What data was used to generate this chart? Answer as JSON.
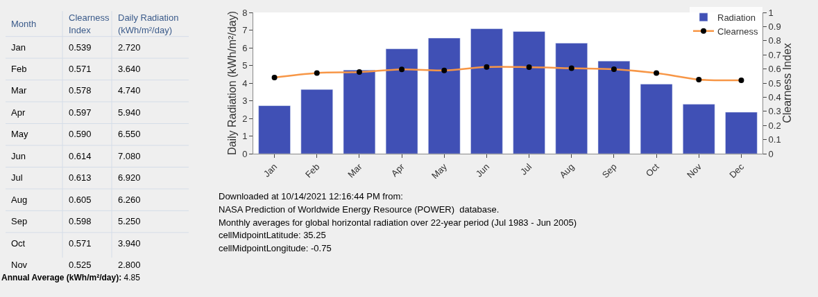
{
  "chart_data": {
    "type": "bar",
    "categories": [
      "Jan",
      "Feb",
      "Mar",
      "Apr",
      "May",
      "Jun",
      "Jul",
      "Aug",
      "Sep",
      "Oct",
      "Nov",
      "Dec"
    ],
    "series": [
      {
        "name": "Radiation",
        "color": "#4050b5",
        "values": [
          2.72,
          3.64,
          4.74,
          5.94,
          6.55,
          7.08,
          6.92,
          6.26,
          5.25,
          3.94,
          2.8,
          2.35
        ]
      },
      {
        "name": "Clearness",
        "type": "line",
        "axis": "y2",
        "color": "#f79646",
        "marker": "circle",
        "values": [
          0.539,
          0.571,
          0.578,
          0.597,
          0.59,
          0.614,
          0.613,
          0.605,
          0.598,
          0.571,
          0.525,
          0.52
        ]
      }
    ],
    "ylabel": "Daily Radiation (kWh/m²/day)",
    "y2label": "Clearness Index",
    "ylim": [
      0,
      8
    ],
    "yticks": [
      0,
      1,
      2,
      3,
      4,
      5,
      6,
      7,
      8
    ],
    "y2lim": [
      0,
      1
    ],
    "y2ticks": [
      0,
      0.1,
      0.2,
      0.3,
      0.4,
      0.5,
      0.6,
      0.7,
      0.8,
      0.9,
      1
    ],
    "legend": "top right",
    "annotations": [
      "Month",
      "Clearness",
      "Index",
      "Daily Radiation",
      "(kWh/m²/day)",
      "Downloaded at 10/14/2021 12:16:44 PM from:",
      "NASA Prediction of Worldwide Energy Resource (POWER)  database.",
      "Monthly averages for global horizontal radiation over 22-year period (Jul 1983 - Jun 2005)",
      "cellMidpointLatitude: 35.25",
      "cellMidpointLongitude: -0.75",
      "Annual Average (kWh/m²/day): 4.85",
      "0.539",
      "2.720",
      "0.571",
      "3.640",
      "0.578",
      "4.740",
      "0.597",
      "5.940",
      "0.590",
      "6.550",
      "0.614",
      "7.080",
      "0.613",
      "6.920",
      "0.605",
      "6.260",
      "0.598",
      "5.250",
      "0.571",
      "3.940",
      "0.525",
      "2.800"
    ]
  }
}
